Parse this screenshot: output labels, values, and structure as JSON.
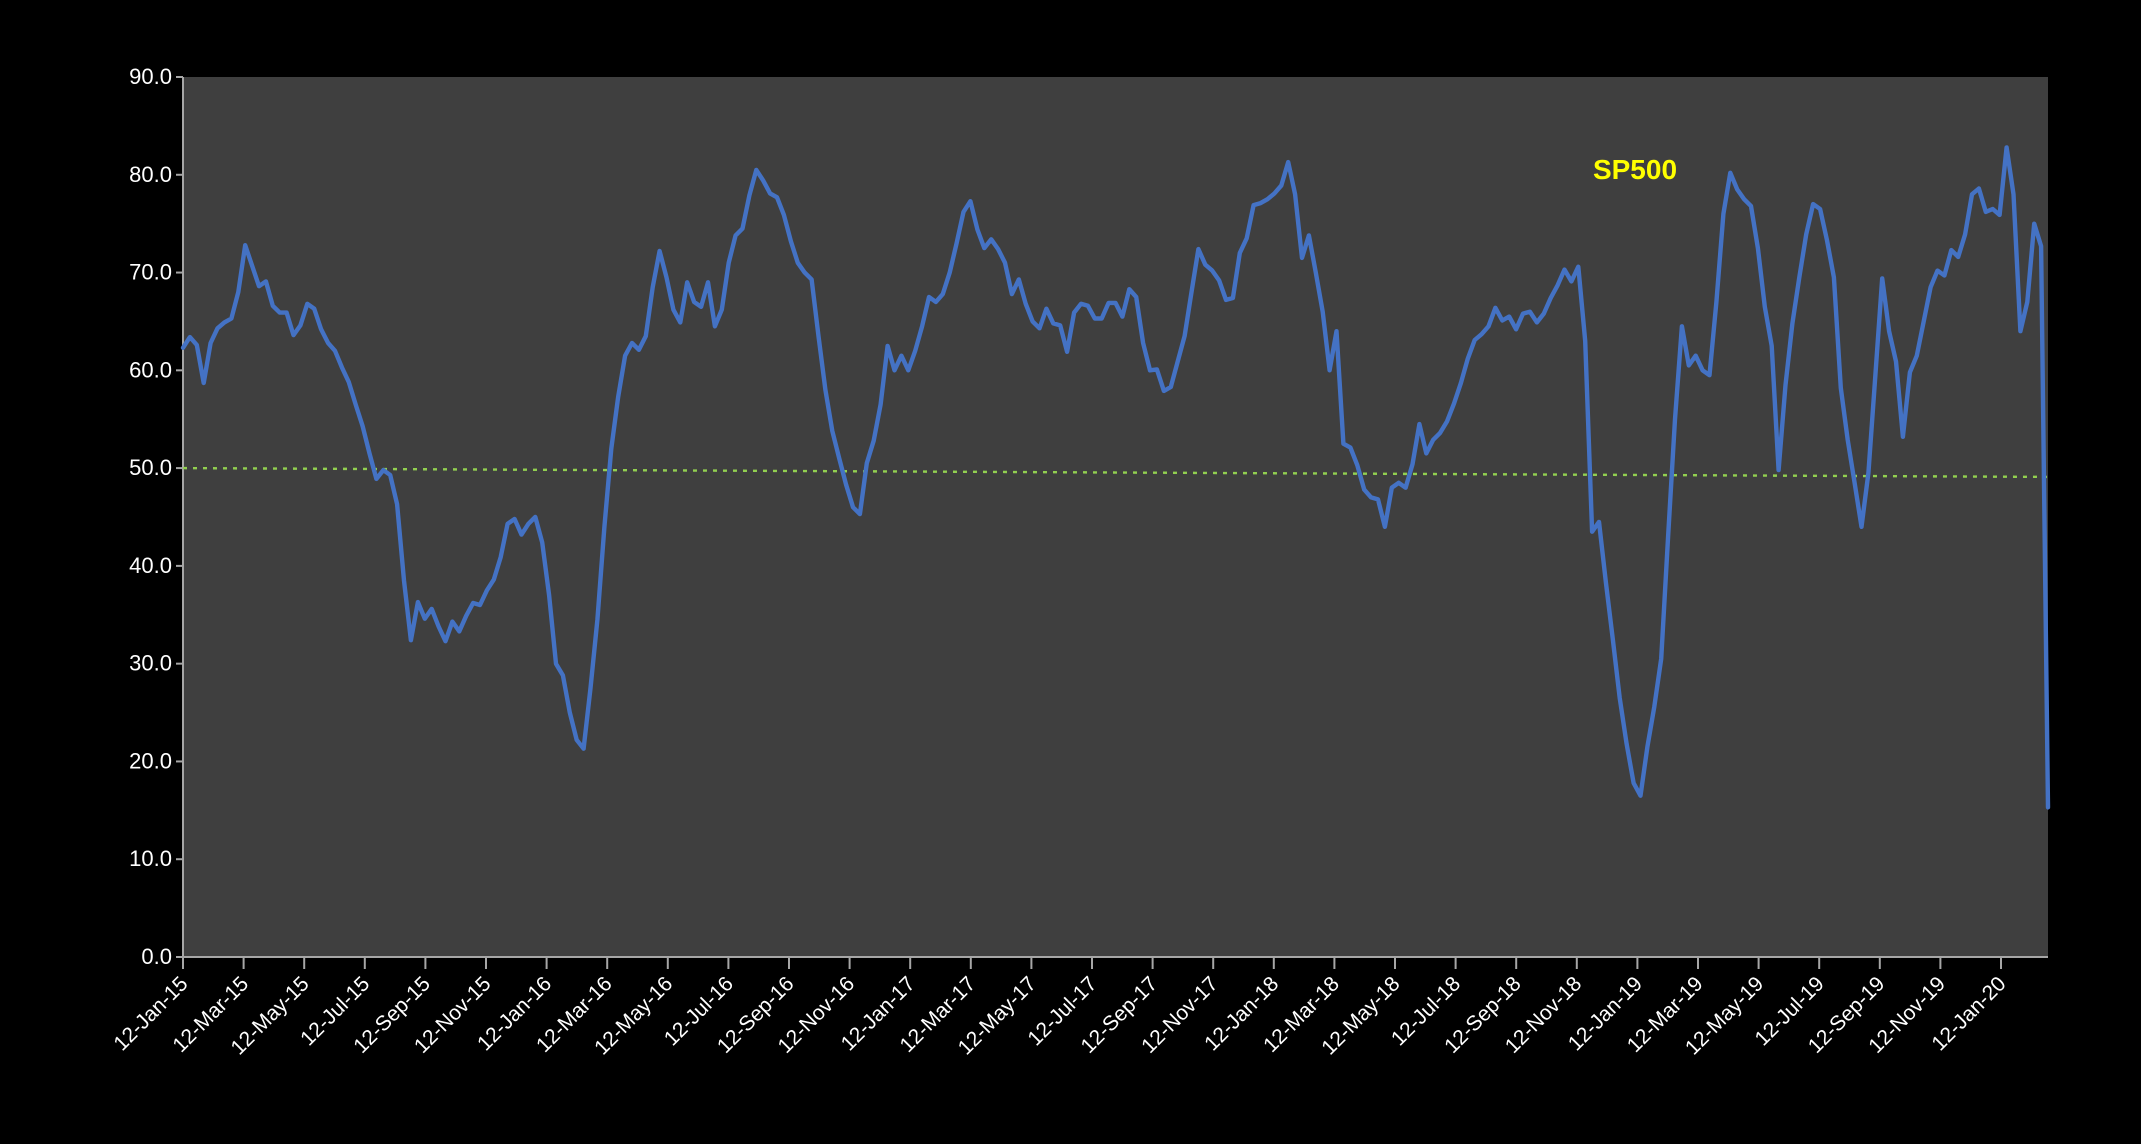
{
  "chart_data": {
    "type": "line",
    "title": "",
    "series_label": "SP500",
    "legend_position": "top-right-inside",
    "grid": "off",
    "ylim": [
      0,
      90
    ],
    "y_tick_labels": [
      "0.0",
      "10.0",
      "20.0",
      "30.0",
      "40.0",
      "50.0",
      "60.0",
      "70.0",
      "80.0",
      "90.0"
    ],
    "x_tick_labels": [
      "12-Jan-15",
      "12-Mar-15",
      "12-May-15",
      "12-Jul-15",
      "12-Sep-15",
      "12-Nov-15",
      "12-Jan-16",
      "12-Mar-16",
      "12-May-16",
      "12-Jul-16",
      "12-Sep-16",
      "12-Nov-16",
      "12-Jan-17",
      "12-Mar-17",
      "12-May-17",
      "12-Jul-17",
      "12-Sep-17",
      "12-Nov-17",
      "12-Jan-18",
      "12-Mar-18",
      "12-May-18",
      "12-Jul-18",
      "12-Sep-18",
      "12-Nov-18",
      "12-Jan-19",
      "12-Mar-19",
      "12-May-19",
      "12-Jul-19",
      "12-Sep-19",
      "12-Nov-19",
      "12-Jan-20"
    ],
    "x_frequency": "weekly",
    "series": [
      {
        "name": "SP500",
        "values": [
          62.3,
          63.4,
          62.6,
          58.7,
          62.8,
          64.3,
          64.9,
          65.3,
          68.0,
          72.8,
          70.7,
          68.6,
          69.1,
          66.6,
          65.9,
          65.9,
          63.6,
          64.6,
          66.8,
          66.3,
          64.2,
          62.8,
          62.0,
          60.3,
          58.8,
          56.5,
          54.3,
          51.5,
          48.9,
          49.8,
          49.3,
          46.3,
          38.5,
          32.4,
          36.3,
          34.6,
          35.6,
          33.8,
          32.3,
          34.3,
          33.3,
          34.9,
          36.2,
          36.0,
          37.5,
          38.6,
          40.9,
          44.3,
          44.8,
          43.2,
          44.3,
          45.0,
          42.4,
          37.0,
          30.0,
          28.8,
          25.0,
          22.2,
          21.3,
          27.5,
          34.5,
          44.0,
          52.0,
          57.3,
          61.5,
          62.8,
          62.1,
          63.5,
          68.5,
          72.2,
          69.5,
          66.2,
          64.9,
          69.0,
          67.0,
          66.5,
          69.0,
          64.5,
          66.2,
          71.0,
          73.8,
          74.5,
          77.9,
          80.5,
          79.4,
          78.1,
          77.7,
          75.9,
          73.2,
          71.0,
          70.0,
          69.3,
          63.5,
          58.0,
          53.8,
          51.0,
          48.3,
          46.0,
          45.3,
          50.5,
          52.8,
          56.5,
          62.5,
          60.0,
          61.5,
          60.0,
          62.0,
          64.5,
          67.5,
          67.0,
          67.8,
          70.0,
          73.0,
          76.2,
          77.3,
          74.4,
          72.5,
          73.4,
          72.4,
          71.0,
          67.8,
          69.3,
          66.8,
          65.0,
          64.3,
          66.3,
          64.8,
          64.6,
          61.9,
          65.9,
          66.8,
          66.6,
          65.3,
          65.3,
          66.9,
          66.9,
          65.5,
          68.3,
          67.5,
          62.8,
          60.0,
          60.1,
          57.9,
          58.3,
          60.9,
          63.5,
          68.0,
          72.4,
          70.8,
          70.2,
          69.2,
          67.2,
          67.4,
          72.0,
          73.5,
          76.9,
          77.1,
          77.5,
          78.1,
          78.9,
          81.3,
          78.0,
          71.5,
          73.8,
          70.0,
          66.0,
          60.0,
          64.0,
          52.5,
          52.1,
          50.3,
          47.8,
          47.0,
          46.8,
          44.0,
          48.0,
          48.5,
          48.0,
          50.4,
          54.5,
          51.5,
          52.9,
          53.6,
          54.8,
          56.6,
          58.7,
          61.2,
          63.1,
          63.7,
          64.5,
          66.4,
          65.1,
          65.5,
          64.2,
          65.8,
          66.0,
          64.9,
          65.8,
          67.4,
          68.7,
          70.3,
          69.1,
          70.6,
          63.0,
          43.5,
          44.5,
          38.3,
          32.5,
          26.5,
          21.8,
          17.8,
          16.5,
          21.5,
          25.6,
          30.5,
          43.0,
          55.0,
          64.5,
          60.5,
          61.5,
          60.0,
          59.5,
          67.0,
          76.0,
          80.2,
          78.5,
          77.5,
          76.8,
          72.5,
          66.5,
          62.5,
          49.8,
          58.5,
          64.8,
          69.5,
          73.9,
          77.0,
          76.5,
          73.3,
          69.5,
          58.2,
          52.9,
          48.5,
          44.0,
          49.5,
          59.4,
          69.4,
          64.0,
          60.9,
          53.2,
          59.8,
          61.5,
          65.0,
          68.5,
          70.2,
          69.7,
          72.3,
          71.6,
          73.9,
          78.0,
          78.6,
          76.2,
          76.5,
          75.9,
          82.8,
          78.0,
          64.0,
          67.0,
          75.0,
          72.7,
          15.3
        ]
      }
    ],
    "reference_line": {
      "label": "",
      "start_value": 50.0,
      "end_value": 49.1,
      "style": "dotted"
    },
    "colors": {
      "page_background": "#000000",
      "plot_background": "#3f3f3f",
      "series": "#4472c4",
      "reference": "#92d050",
      "series_label": "#ffff00",
      "axis_text": "#ffffff",
      "axis_line": "#a6a6a6"
    }
  }
}
